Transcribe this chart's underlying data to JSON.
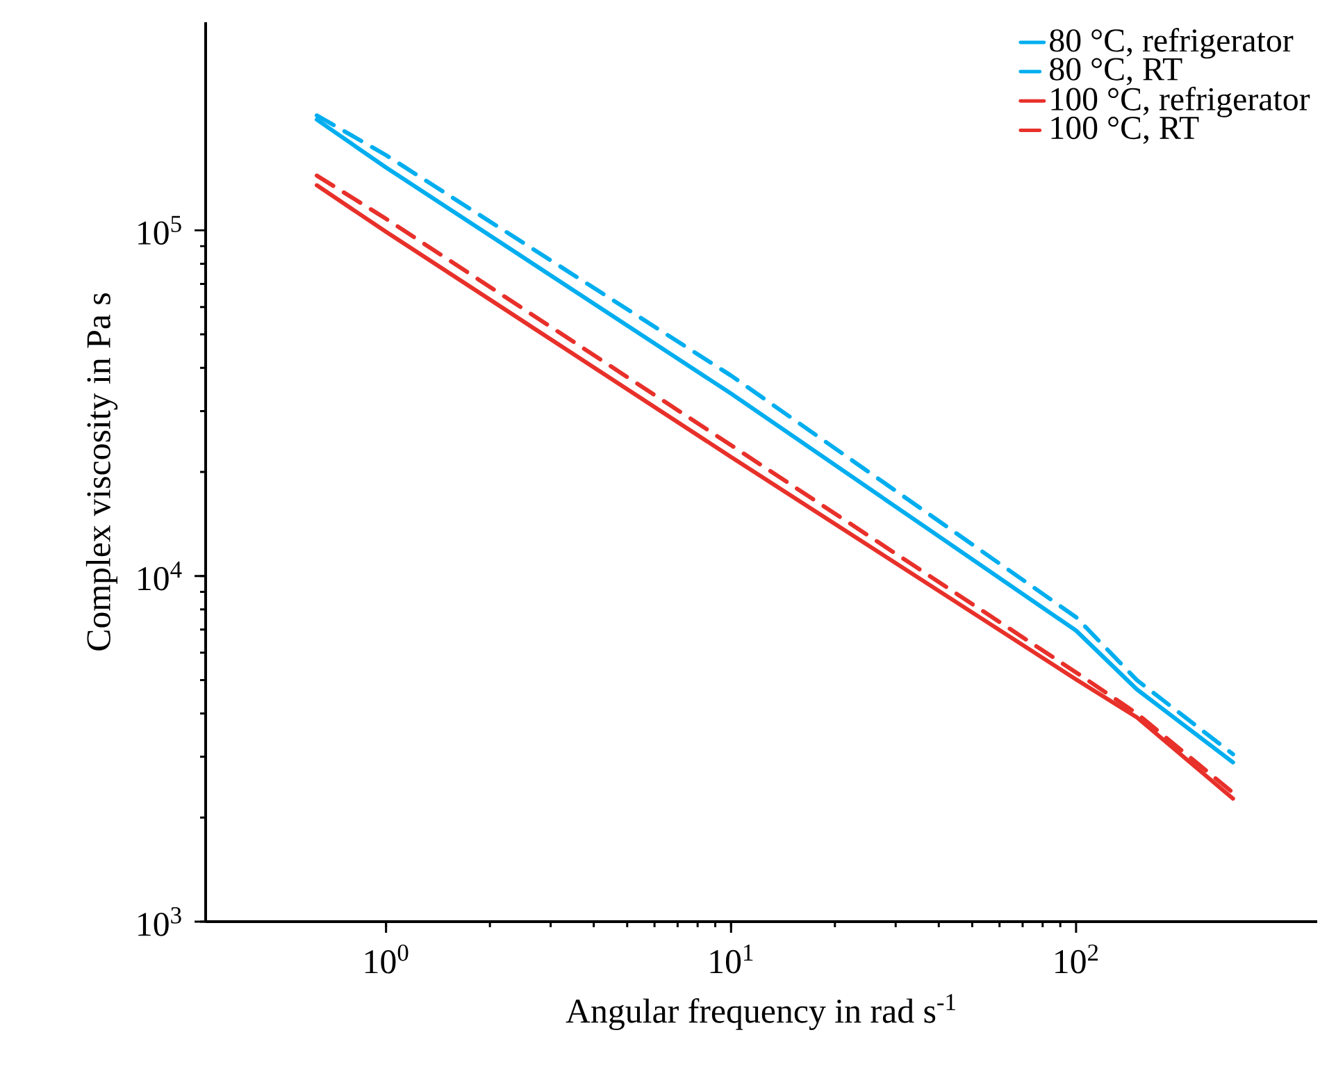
{
  "chart_data": {
    "type": "line",
    "xlabel": "Angular frequency in rad s$^{-1}$",
    "ylabel": "Complex viscosity in Pa s",
    "log": "xy",
    "xlim": [
      0.3,
      500
    ],
    "ylim": [
      1000,
      400000
    ],
    "xticks": [
      {
        "value": 1,
        "label": "10$^{0}$"
      },
      {
        "value": 10,
        "label": "10$^{1}$"
      },
      {
        "value": 100,
        "label": "10$^{2}$"
      }
    ],
    "yticks": [
      {
        "value": 1000,
        "label": "10$^{3}$"
      },
      {
        "value": 10000,
        "label": "10$^{4}$"
      },
      {
        "value": 100000,
        "label": "10$^{5}$"
      }
    ],
    "legend": "top right",
    "grid": false,
    "x": [
      0.63,
      1,
      10,
      100,
      150,
      285
    ],
    "series": [
      {
        "name": "80 °C, refrigerator",
        "color": "#00aeef",
        "line_style": "solid",
        "values": [
          209000,
          152000,
          33700,
          6950,
          4700,
          2890
        ]
      },
      {
        "name": "80 °C, RT",
        "color": "#00aeef",
        "line_style": "dashed",
        "values": [
          215000,
          165000,
          38000,
          7600,
          5000,
          3050
        ]
      },
      {
        "name": "100 °C, refrigerator",
        "color": "#e8302a",
        "line_style": "solid",
        "values": [
          135000,
          99000,
          22100,
          5020,
          3900,
          2270
        ]
      },
      {
        "name": "100 °C, RT",
        "color": "#e8302a",
        "line_style": "dashed",
        "values": [
          144000,
          108000,
          23900,
          5260,
          4000,
          2360
        ]
      }
    ]
  }
}
